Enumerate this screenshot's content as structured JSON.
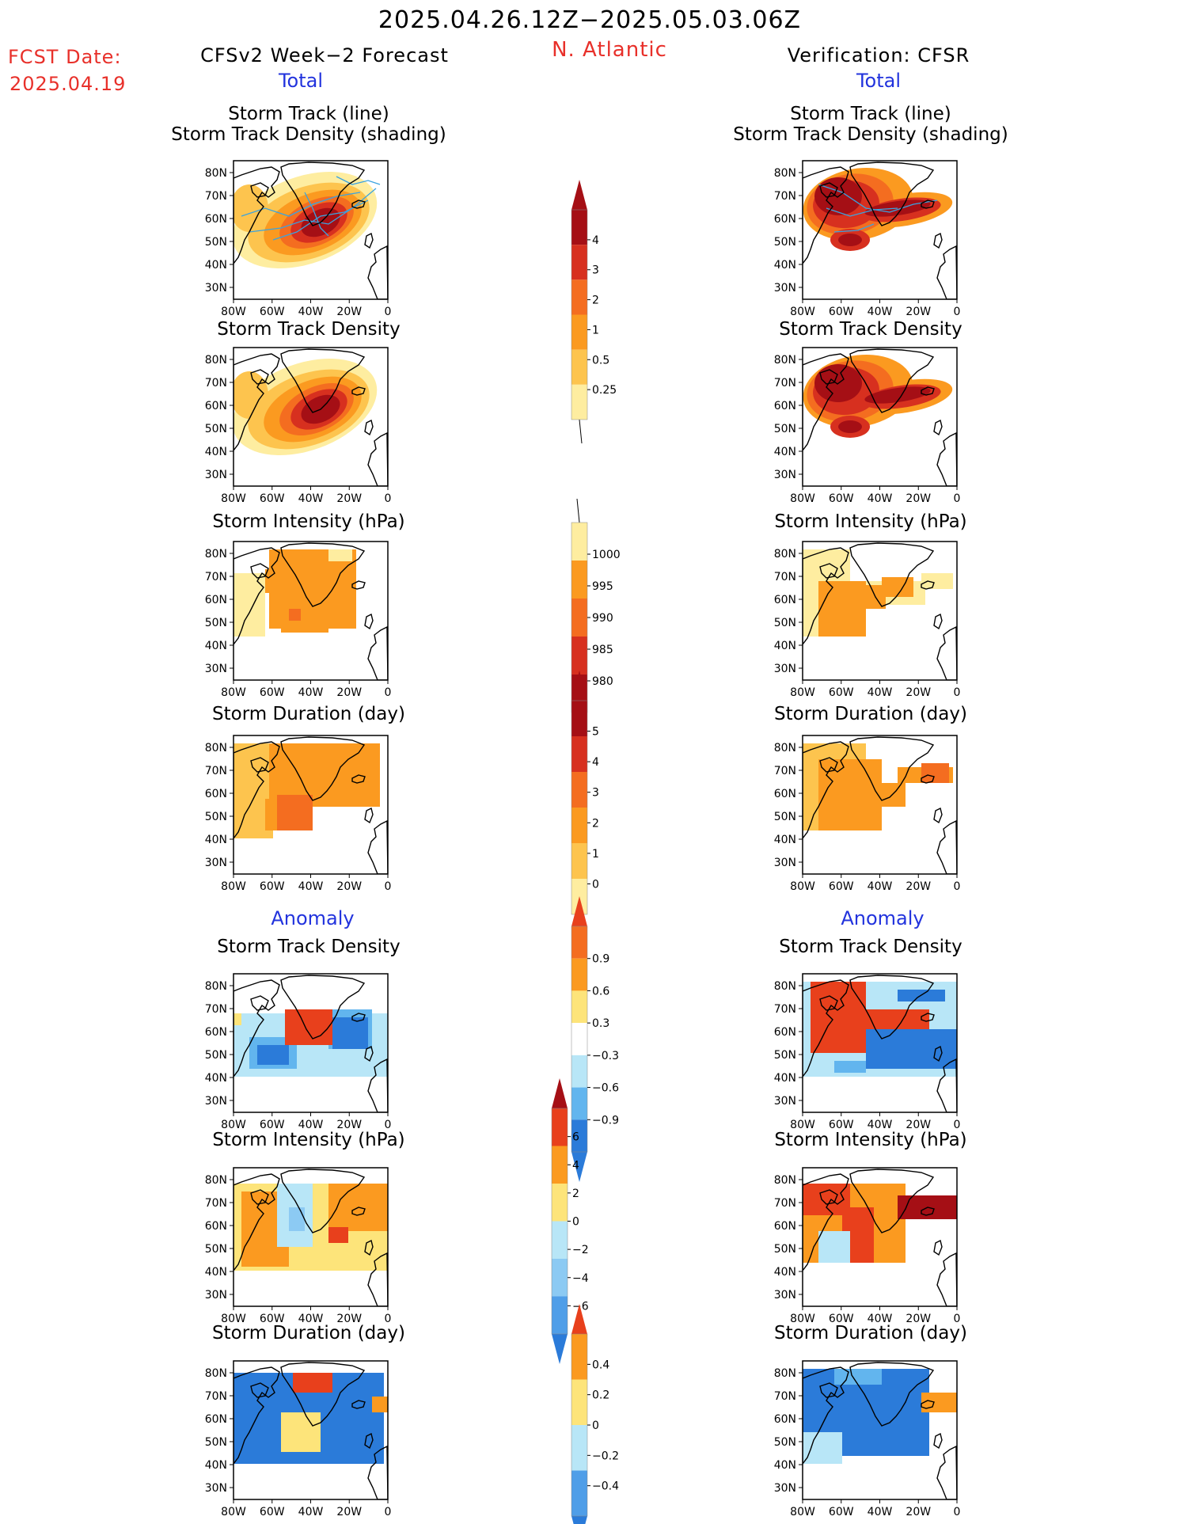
{
  "header": {
    "date_range": "2025.04.26.12Z−2025.05.03.06Z",
    "region": "N. Atlantic",
    "fcst_label": "FCST Date:",
    "fcst_date": "2025.04.19",
    "left_title": "CFSv2 Week−2 Forecast",
    "right_title": "Verification: CFSR"
  },
  "sections": {
    "total": "Total",
    "anomaly": "Anomaly"
  },
  "panel_titles": {
    "track_line": "Storm Track (line)",
    "track_shading": "Storm Track Density (shading)",
    "track_density": "Storm Track Density",
    "intensity": "Storm Intensity (hPa)",
    "duration": "Storm Duration (day)"
  },
  "axes": {
    "lat_ticks": [
      "80N",
      "70N",
      "60N",
      "50N",
      "40N",
      "30N"
    ],
    "lon_ticks": [
      "80W",
      "60W",
      "40W",
      "20W",
      "0"
    ]
  },
  "colorbars": [
    {
      "id": "density",
      "labels": [
        "4",
        "3",
        "2",
        "1",
        "0.5",
        "0.25"
      ],
      "colors": [
        "#a50f15",
        "#d7301f",
        "#f46d20",
        "#fb9a20",
        "#fdc44e",
        "#feeda0"
      ],
      "arrow_top": "#a50f15",
      "arrow_bottom": "none"
    },
    {
      "id": "intensity",
      "labels": [
        "1000",
        "995",
        "990",
        "985",
        "980"
      ],
      "colors": [
        "#feeda0",
        "#fb9a20",
        "#f46d20",
        "#d7301f",
        "#a50f15"
      ],
      "arrow_top": "none",
      "arrow_bottom": "#a50f15"
    },
    {
      "id": "duration",
      "labels": [
        "5",
        "4",
        "3",
        "2",
        "1",
        "0"
      ],
      "colors": [
        "#a50f15",
        "#d7301f",
        "#f46d20",
        "#fb9a20",
        "#fdc44e",
        "#feeda0"
      ],
      "arrow_top": "#a50f15",
      "arrow_bottom": "none"
    },
    {
      "id": "anom_density",
      "labels": [
        "0.9",
        "0.6",
        "0.3",
        "−0.3",
        "−0.6",
        "−0.9"
      ],
      "colors": [
        "#f46d20",
        "#fb9a20",
        "#fde47a",
        "#ffffff",
        "#b8e6f7",
        "#62b5ee",
        "#2b7bd9"
      ],
      "arrow_top": "#e8401c",
      "arrow_bottom": "#2b7bd9"
    },
    {
      "id": "anom_intensity",
      "labels": [
        "6",
        "4",
        "2",
        "0",
        "−2",
        "−4",
        "−6"
      ],
      "colors": [
        "#e8401c",
        "#fb9a20",
        "#fde47a",
        "#b8e6f7",
        "#8ccaf3",
        "#4f9ee8"
      ],
      "arrow_top": "#a50f15",
      "arrow_bottom": "#2b7bd9"
    },
    {
      "id": "anom_duration",
      "labels": [
        "0.4",
        "0.2",
        "0",
        "−0.2",
        "−0.4"
      ],
      "colors": [
        "#fb9a20",
        "#fde47a",
        "#b8e6f7",
        "#4f9ee8"
      ],
      "arrow_top": "#e8401c",
      "arrow_bottom": "#2b7bd9"
    }
  ],
  "colors": {
    "title_red": "#e8302a",
    "section_blue": "#2233dd",
    "track_line": "#3aa3e0"
  }
}
